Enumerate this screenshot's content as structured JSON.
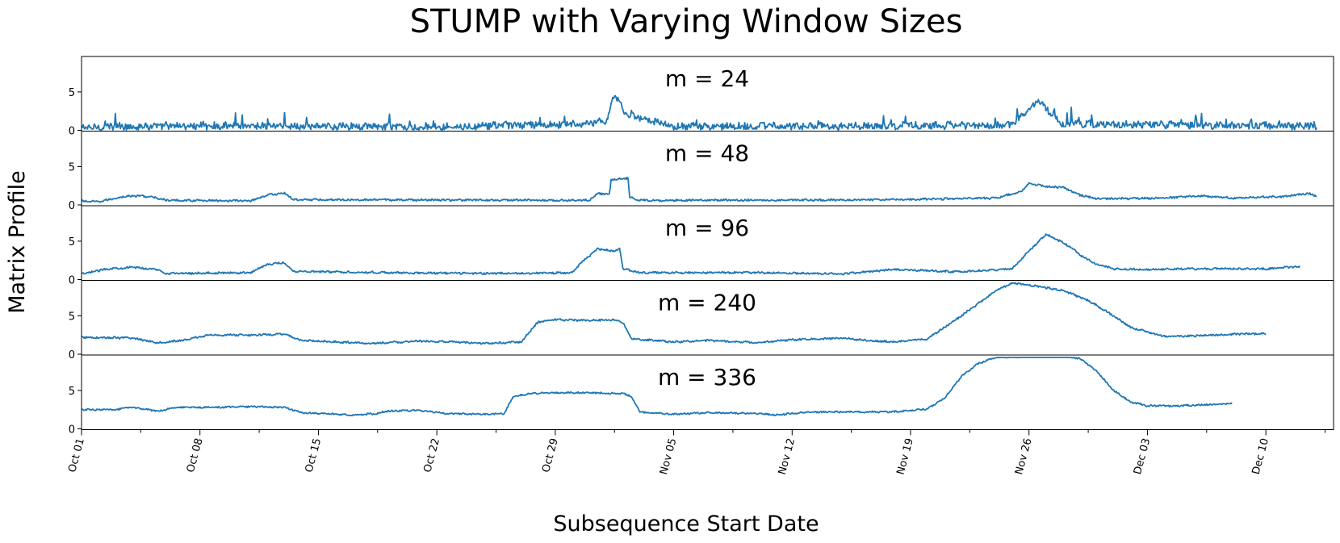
{
  "chart_data": {
    "type": "line",
    "title": "STUMP with Varying Window Sizes",
    "xlabel": "Subsequence Start Date",
    "ylabel": "Matrix Profile",
    "series_color": "#1f77b4",
    "x_range": [
      "2014-10-01",
      "2014-12-14"
    ],
    "x_ticks": [
      "Oct 01",
      "Oct 08",
      "Oct 15",
      "Oct 22",
      "Oct 29",
      "Nov 05",
      "Nov 12",
      "Nov 19",
      "Nov 26",
      "Dec 03",
      "Dec 10"
    ],
    "ylim": [
      0,
      9.3
    ],
    "y_ticks": [
      0,
      5
    ],
    "panels": [
      {
        "label": "m = 24",
        "x_end": "2014-12-13",
        "baseline": 0.35,
        "noise": 0.45,
        "points": [
          [
            0,
            0.3
          ],
          [
            2,
            0.5
          ],
          [
            10,
            0.6
          ],
          [
            20,
            0.4
          ],
          [
            31,
            0.9
          ],
          [
            31.5,
            4.7
          ],
          [
            32.2,
            2.0
          ],
          [
            35,
            0.5
          ],
          [
            47,
            0.6
          ],
          [
            55,
            0.7
          ],
          [
            56.5,
            3.9
          ],
          [
            58,
            0.8
          ],
          [
            65,
            0.7
          ],
          [
            70,
            0.6
          ],
          [
            73,
            0.4
          ],
          [
            73.5,
            2.3
          ],
          [
            74,
            0.8
          ],
          [
            74.5,
            1.5
          ],
          [
            75,
            0.8
          ]
        ],
        "spikes": [
          [
            2.0,
            2.2
          ],
          [
            5.0,
            1.1
          ],
          [
            9.5,
            2.0
          ],
          [
            11.0,
            1.5
          ],
          [
            12.0,
            2.3
          ],
          [
            18.2,
            2.1
          ],
          [
            19.4,
            1.2
          ],
          [
            25.0,
            1.0
          ],
          [
            30.6,
            1.6
          ],
          [
            32.5,
            2.6
          ],
          [
            39.2,
            1.0
          ],
          [
            47.4,
            1.9
          ],
          [
            54.0,
            1.6
          ],
          [
            55.3,
            2.8
          ],
          [
            57.5,
            2.8
          ],
          [
            58.5,
            3.0
          ],
          [
            59.7,
            2.0
          ],
          [
            65.0,
            1.4
          ],
          [
            66.2,
            2.2
          ],
          [
            69.1,
            1.3
          ]
        ]
      },
      {
        "label": "m = 48",
        "x_end": "2014-12-13",
        "baseline": 0.55,
        "noise": 0.12,
        "points": [
          [
            0,
            0.5
          ],
          [
            1,
            0.4
          ],
          [
            2.5,
            1.1
          ],
          [
            3.5,
            1.2
          ],
          [
            4.5,
            0.9
          ],
          [
            5,
            0.6
          ],
          [
            10,
            0.55
          ],
          [
            11,
            1.3
          ],
          [
            12,
            1.55
          ],
          [
            12.5,
            0.7
          ],
          [
            20,
            0.65
          ],
          [
            30,
            0.6
          ],
          [
            30.5,
            1.5
          ],
          [
            31.2,
            1.4
          ],
          [
            31.3,
            3.3
          ],
          [
            32.3,
            3.5
          ],
          [
            32.4,
            1.0
          ],
          [
            33,
            0.6
          ],
          [
            45,
            0.65
          ],
          [
            50,
            0.75
          ],
          [
            54,
            0.9
          ],
          [
            55.5,
            1.7
          ],
          [
            56,
            2.8
          ],
          [
            57,
            2.4
          ],
          [
            58,
            2.3
          ],
          [
            59,
            1.3
          ],
          [
            60,
            0.8
          ],
          [
            64,
            0.9
          ],
          [
            66,
            1.2
          ],
          [
            68,
            0.9
          ],
          [
            71,
            1.1
          ],
          [
            72.5,
            1.5
          ],
          [
            73.5,
            0.8
          ]
        ],
        "spikes": []
      },
      {
        "label": "m = 96",
        "x_end": "2014-12-12",
        "baseline": 0.9,
        "noise": 0.12,
        "points": [
          [
            0,
            0.7
          ],
          [
            1.5,
            1.4
          ],
          [
            3,
            1.6
          ],
          [
            4.5,
            1.3
          ],
          [
            5,
            0.8
          ],
          [
            10,
            0.9
          ],
          [
            10.5,
            1.5
          ],
          [
            11,
            2.0
          ],
          [
            12,
            2.2
          ],
          [
            12.5,
            1.1
          ],
          [
            15,
            1.0
          ],
          [
            20,
            0.85
          ],
          [
            25,
            0.8
          ],
          [
            29,
            0.9
          ],
          [
            29.5,
            2.1
          ],
          [
            30.5,
            4.0
          ],
          [
            31.5,
            3.7
          ],
          [
            31.8,
            4.0
          ],
          [
            32,
            1.4
          ],
          [
            33,
            0.9
          ],
          [
            40,
            0.9
          ],
          [
            45,
            0.75
          ],
          [
            48,
            1.3
          ],
          [
            52,
            1.0
          ],
          [
            55,
            1.4
          ],
          [
            56,
            3.7
          ],
          [
            57,
            5.9
          ],
          [
            57.5,
            5.4
          ],
          [
            58.5,
            4.2
          ],
          [
            59,
            3.2
          ],
          [
            60,
            2.0
          ],
          [
            61,
            1.4
          ],
          [
            63,
            1.3
          ],
          [
            65,
            1.4
          ],
          [
            70,
            1.4
          ],
          [
            72,
            1.7
          ],
          [
            72.5,
            1.8
          ]
        ],
        "spikes": []
      },
      {
        "label": "m = 240",
        "x_end": "2014-12-10",
        "baseline": 2.0,
        "noise": 0.12,
        "points": [
          [
            0,
            2.2
          ],
          [
            3,
            2.1
          ],
          [
            4.5,
            1.5
          ],
          [
            6,
            1.8
          ],
          [
            7.5,
            2.5
          ],
          [
            10,
            2.5
          ],
          [
            12,
            2.6
          ],
          [
            13,
            1.8
          ],
          [
            15,
            1.6
          ],
          [
            17,
            1.4
          ],
          [
            20,
            1.7
          ],
          [
            22,
            1.6
          ],
          [
            24,
            1.4
          ],
          [
            26,
            1.6
          ],
          [
            26.5,
            3.0
          ],
          [
            27,
            4.2
          ],
          [
            28,
            4.5
          ],
          [
            30,
            4.4
          ],
          [
            31.5,
            4.5
          ],
          [
            32,
            4.1
          ],
          [
            32.5,
            2.0
          ],
          [
            35,
            1.6
          ],
          [
            37,
            1.8
          ],
          [
            40,
            1.5
          ],
          [
            42,
            1.9
          ],
          [
            45,
            2.1
          ],
          [
            47,
            1.7
          ],
          [
            48,
            1.6
          ],
          [
            50,
            2.0
          ],
          [
            52,
            5.0
          ],
          [
            54,
            8.2
          ],
          [
            55,
            9.3
          ],
          [
            56,
            9.0
          ],
          [
            58,
            8.3
          ],
          [
            59.5,
            7.0
          ],
          [
            61,
            5.0
          ],
          [
            62,
            3.5
          ],
          [
            64,
            2.3
          ],
          [
            66,
            2.4
          ],
          [
            68,
            2.6
          ],
          [
            70,
            2.7
          ],
          [
            72,
            2.5
          ]
        ],
        "spikes": []
      },
      {
        "label": "m = 336",
        "x_end": "2014-12-08",
        "baseline": 2.5,
        "noise": 0.1,
        "points": [
          [
            0,
            2.5
          ],
          [
            2,
            2.5
          ],
          [
            3,
            2.8
          ],
          [
            4.5,
            2.3
          ],
          [
            5.5,
            2.8
          ],
          [
            8,
            2.8
          ],
          [
            10,
            2.9
          ],
          [
            12,
            2.8
          ],
          [
            13,
            2.1
          ],
          [
            16,
            1.8
          ],
          [
            17.5,
            2.0
          ],
          [
            18,
            2.3
          ],
          [
            20,
            2.4
          ],
          [
            21.5,
            2.0
          ],
          [
            24,
            1.9
          ],
          [
            25,
            2.0
          ],
          [
            25.5,
            4.2
          ],
          [
            26.5,
            4.6
          ],
          [
            28,
            4.7
          ],
          [
            30,
            4.7
          ],
          [
            32,
            4.6
          ],
          [
            32.5,
            4.2
          ],
          [
            33,
            2.2
          ],
          [
            35,
            1.9
          ],
          [
            37,
            2.1
          ],
          [
            40,
            2.0
          ],
          [
            41,
            1.8
          ],
          [
            43,
            2.2
          ],
          [
            46,
            2.2
          ],
          [
            48,
            2.2
          ],
          [
            50,
            2.6
          ],
          [
            51,
            4.0
          ],
          [
            52,
            6.8
          ],
          [
            53,
            8.5
          ],
          [
            54,
            9.3
          ],
          [
            56,
            9.4
          ],
          [
            58,
            9.4
          ],
          [
            59,
            9.2
          ],
          [
            60,
            7.5
          ],
          [
            61,
            5.0
          ],
          [
            62,
            3.5
          ],
          [
            63,
            3.0
          ],
          [
            65,
            3.0
          ],
          [
            67,
            3.2
          ],
          [
            69,
            3.4
          ],
          [
            70,
            3.2
          ],
          [
            71,
            3.3
          ]
        ],
        "spikes": []
      }
    ]
  }
}
